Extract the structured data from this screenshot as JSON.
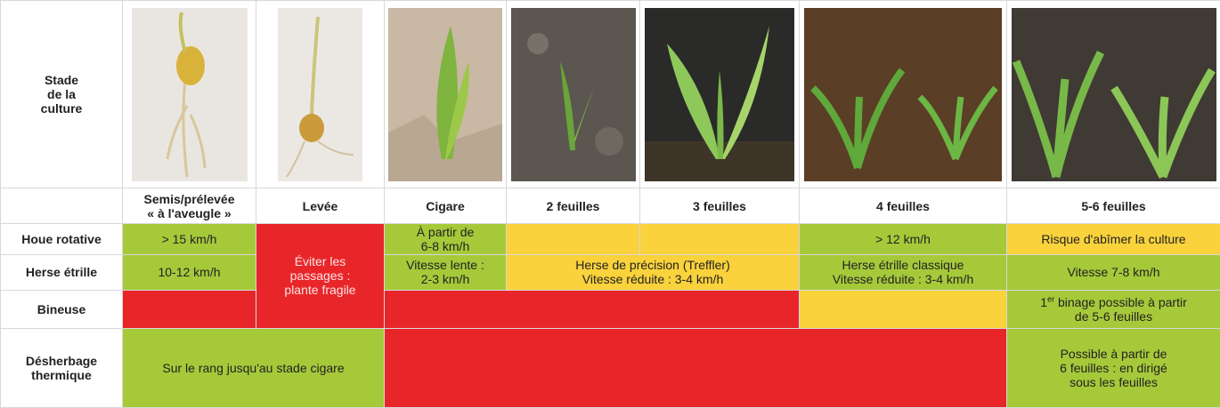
{
  "header": {
    "label": [
      "Stade",
      "de la",
      "culture"
    ]
  },
  "stages": [
    [
      "Semis/prélevée",
      "« à l'aveugle »"
    ],
    "Levée",
    "Cigare",
    "2 feuilles",
    "3 feuilles",
    "4 feuilles",
    "5-6 feuilles"
  ],
  "rows": [
    {
      "label": [
        "Houe rotative"
      ],
      "cells": [
        [
          "> 15 km/h"
        ],
        [
          "Éviter les",
          "passages :",
          "plante fragile"
        ],
        [
          "À partir de",
          "6-8 km/h"
        ],
        [
          "> 12 km/h"
        ],
        [
          "Risque d'abîmer la culture"
        ]
      ]
    },
    {
      "label": [
        "Herse étrille"
      ],
      "cells": [
        [
          "10-12 km/h"
        ],
        [
          "Vitesse lente :",
          "2-3 km/h"
        ],
        [
          "Herse de précision (Treffler)",
          "Vitesse réduite : 3-4 km/h"
        ],
        [
          "Herse étrille classique",
          "Vitesse réduite : 3-4 km/h"
        ],
        [
          "Vitesse 7-8 km/h"
        ]
      ]
    },
    {
      "label": [
        "Bineuse"
      ],
      "note": {
        "num": "1",
        "sup": "er",
        "lines": [
          "binage possible à partir",
          "de 5-6 feuilles"
        ]
      }
    },
    {
      "label": [
        "Désherbage",
        "thermique"
      ],
      "cells": [
        [
          "Sur le rang jusqu'au stade cigare"
        ],
        [
          "Possible à partir de",
          "6 feuilles : en dirigé",
          "sous les feuilles"
        ]
      ]
    }
  ]
}
